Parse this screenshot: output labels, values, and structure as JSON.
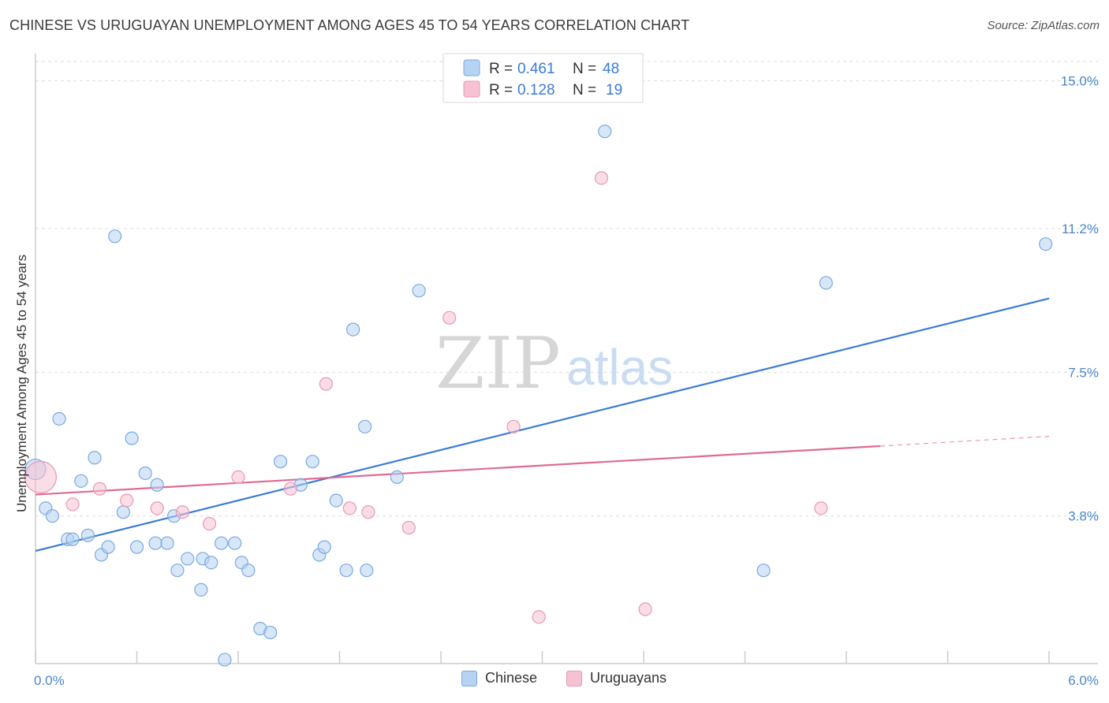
{
  "title": "CHINESE VS URUGUAYAN UNEMPLOYMENT AMONG AGES 45 TO 54 YEARS CORRELATION CHART",
  "source": "Source: ZipAtlas.com",
  "watermark": {
    "zip": "ZIP",
    "atlas": "atlas"
  },
  "colors": {
    "chinese": "#3a7bd5",
    "chinese_fill": "#b7d3f2",
    "uruguayan": "#e06a94",
    "uruguayan_fill": "#f6c1d2"
  },
  "legend": {
    "chinese": {
      "r_label": "R =",
      "r_value": "0.461",
      "n_label": "N =",
      "n_value": "48"
    },
    "uruguayan": {
      "r_label": "R =",
      "r_value": "0.128",
      "n_label": "N =",
      "n_value": "19"
    }
  },
  "bottom_legend": {
    "chinese": "Chinese",
    "uruguayan": "Uruguayans"
  },
  "chart_data": {
    "type": "scatter",
    "title": "CHINESE VS URUGUAYAN UNEMPLOYMENT AMONG AGES 45 TO 54 YEARS CORRELATION CHART",
    "xlabel": "",
    "ylabel": "Unemployment Among Ages 45 to 54 years",
    "xlim": [
      0,
      6
    ],
    "ylim": [
      0,
      15.5
    ],
    "x_tick_labels": {
      "min": "0.0%",
      "max": "6.0%"
    },
    "y_ticks": [
      3.8,
      7.5,
      11.2,
      15.0
    ],
    "y_tick_labels": [
      "3.8%",
      "7.5%",
      "11.2%",
      "15.0%"
    ],
    "series": [
      {
        "name": "Chinese",
        "points": [
          [
            0.0,
            5.0
          ],
          [
            0.06,
            4.0
          ],
          [
            0.1,
            3.8
          ],
          [
            0.14,
            6.3
          ],
          [
            0.19,
            3.2
          ],
          [
            0.22,
            3.2
          ],
          [
            0.27,
            4.7
          ],
          [
            0.31,
            3.3
          ],
          [
            0.35,
            5.3
          ],
          [
            0.39,
            2.8
          ],
          [
            0.43,
            3.0
          ],
          [
            0.47,
            11.0
          ],
          [
            0.52,
            3.9
          ],
          [
            0.57,
            5.8
          ],
          [
            0.6,
            3.0
          ],
          [
            0.65,
            4.9
          ],
          [
            0.71,
            3.1
          ],
          [
            0.72,
            4.6
          ],
          [
            0.78,
            3.1
          ],
          [
            0.82,
            3.8
          ],
          [
            0.84,
            2.4
          ],
          [
            0.9,
            2.7
          ],
          [
            0.98,
            1.9
          ],
          [
            0.99,
            2.7
          ],
          [
            1.04,
            2.6
          ],
          [
            1.1,
            3.1
          ],
          [
            1.12,
            0.1
          ],
          [
            1.18,
            3.1
          ],
          [
            1.22,
            2.6
          ],
          [
            1.26,
            2.4
          ],
          [
            1.33,
            0.9
          ],
          [
            1.39,
            0.8
          ],
          [
            1.45,
            5.2
          ],
          [
            1.57,
            4.6
          ],
          [
            1.64,
            5.2
          ],
          [
            1.68,
            2.8
          ],
          [
            1.71,
            3.0
          ],
          [
            1.78,
            4.2
          ],
          [
            1.84,
            2.4
          ],
          [
            1.88,
            8.6
          ],
          [
            1.95,
            6.1
          ],
          [
            1.96,
            2.4
          ],
          [
            2.14,
            4.8
          ],
          [
            2.27,
            9.6
          ],
          [
            3.37,
            13.7
          ],
          [
            4.31,
            2.4
          ],
          [
            4.68,
            9.8
          ],
          [
            5.98,
            10.8
          ]
        ],
        "trend": [
          [
            0.0,
            2.9
          ],
          [
            6.0,
            9.4
          ]
        ]
      },
      {
        "name": "Uruguayans",
        "points": [
          [
            0.03,
            4.8
          ],
          [
            0.22,
            4.1
          ],
          [
            0.38,
            4.5
          ],
          [
            0.54,
            4.2
          ],
          [
            0.72,
            4.0
          ],
          [
            0.87,
            3.9
          ],
          [
            1.03,
            3.6
          ],
          [
            1.2,
            4.8
          ],
          [
            1.51,
            4.5
          ],
          [
            1.72,
            7.2
          ],
          [
            1.86,
            4.0
          ],
          [
            1.97,
            3.9
          ],
          [
            2.21,
            3.5
          ],
          [
            2.45,
            8.9
          ],
          [
            2.83,
            6.1
          ],
          [
            2.98,
            1.2
          ],
          [
            3.35,
            12.5
          ],
          [
            3.61,
            1.4
          ],
          [
            4.65,
            4.0
          ]
        ],
        "trend": [
          [
            0.0,
            4.35
          ],
          [
            5.0,
            5.6
          ]
        ],
        "trend_dashed_extension": [
          [
            5.0,
            5.6
          ],
          [
            6.0,
            5.85
          ]
        ]
      }
    ],
    "legend_position": "top-center"
  }
}
